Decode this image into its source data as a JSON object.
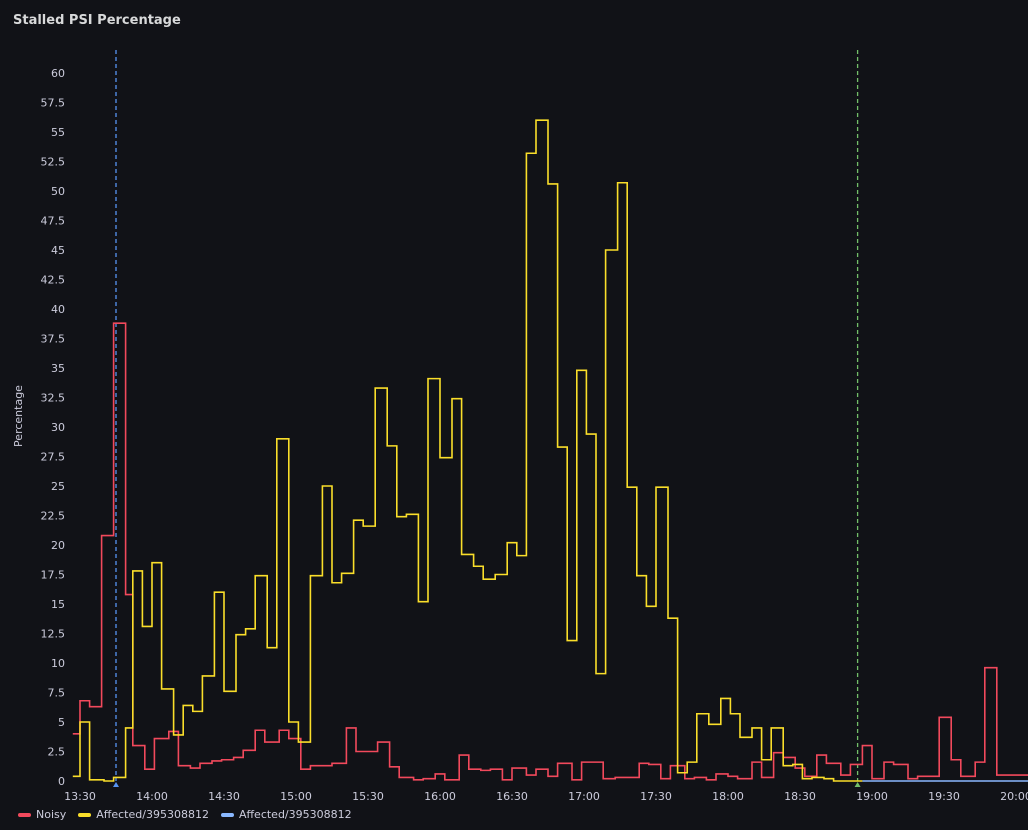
{
  "panel": {
    "title": "Stalled PSI Percentage"
  },
  "chart_data": {
    "type": "line",
    "step": true,
    "ylabel": "Percentage",
    "ylim": [
      0,
      62
    ],
    "yticks": [
      0,
      2.5,
      5,
      7.5,
      10,
      12.5,
      15,
      17.5,
      20,
      22.5,
      25,
      27.5,
      30,
      32.5,
      35,
      37.5,
      40,
      42.5,
      45,
      47.5,
      50,
      52.5,
      55,
      57.5,
      60
    ],
    "ytick_labels": [
      "0",
      "2.5",
      "5",
      "7.5",
      "10",
      "12.5",
      "15",
      "17.5",
      "20",
      "22.5",
      "25",
      "27.5",
      "30",
      "32.5",
      "35",
      "37.5",
      "40",
      "42.5",
      "45",
      "47.5",
      "50",
      "52.5",
      "55",
      "57.5",
      "60"
    ],
    "xlim_minutes": [
      810,
      1205
    ],
    "xticks_minutes": [
      810,
      840,
      870,
      900,
      930,
      960,
      990,
      1020,
      1050,
      1080,
      1110,
      1140,
      1170,
      1200
    ],
    "xtick_labels": [
      "13:30",
      "14:00",
      "14:30",
      "15:00",
      "15:30",
      "16:00",
      "16:30",
      "17:00",
      "17:30",
      "18:00",
      "18:30",
      "19:00",
      "19:30",
      "20:00"
    ],
    "grid": false,
    "legend_position": "bottom-left",
    "annotations": [
      {
        "minutes": 825,
        "color": "#5794f2"
      },
      {
        "minutes": 1134,
        "color": "#73bf69"
      }
    ],
    "series": [
      {
        "name": "Noisy",
        "color": "#f2495c",
        "x": [
          807,
          810,
          814,
          819,
          824,
          829,
          832,
          837,
          841,
          847,
          851,
          856,
          860,
          865,
          869,
          874,
          878,
          883,
          887,
          893,
          897,
          902,
          906,
          911,
          915,
          921,
          925,
          930,
          934,
          939,
          943,
          949,
          953,
          958,
          962,
          968,
          972,
          977,
          981,
          986,
          990,
          996,
          1000,
          1005,
          1009,
          1015,
          1019,
          1024,
          1028,
          1033,
          1037,
          1043,
          1047,
          1052,
          1056,
          1062,
          1066,
          1071,
          1075,
          1080,
          1084,
          1090,
          1094,
          1099,
          1103,
          1108,
          1112,
          1117,
          1121,
          1127,
          1131,
          1136,
          1140,
          1145,
          1149,
          1155,
          1159,
          1164,
          1168,
          1173,
          1177,
          1183,
          1187,
          1192,
          1196,
          1201,
          1205
        ],
        "y": [
          4,
          6.8,
          6.3,
          20.8,
          38.8,
          15.8,
          3,
          1,
          3.6,
          4.2,
          1.3,
          1.1,
          1.5,
          1.7,
          1.8,
          2,
          2.6,
          4.3,
          3.3,
          4.3,
          3.6,
          1,
          1.3,
          1.3,
          1.5,
          4.5,
          2.5,
          2.5,
          3.3,
          1.2,
          0.3,
          0.1,
          0.2,
          0.6,
          0.1,
          2.2,
          1,
          0.9,
          1,
          0.1,
          1.1,
          0.5,
          1,
          0.4,
          1.5,
          0.1,
          1.6,
          1.6,
          0.2,
          0.3,
          0.3,
          1.5,
          1.4,
          0.2,
          1.3,
          0.2,
          0.3,
          0.1,
          0.6,
          0.4,
          0.2,
          1.6,
          0.3,
          2.4,
          2,
          1.1,
          0.4,
          2.2,
          1.5,
          0.5,
          1.4,
          3,
          0.2,
          1.6,
          1.4,
          0.2,
          0.4,
          0.4,
          5.4,
          1.8,
          0.4,
          1.6,
          9.6,
          0.5,
          0.5,
          0.5,
          0.5
        ]
      },
      {
        "name": "Affected/395308812",
        "color": "#fade2a",
        "x": [
          807,
          810,
          814,
          820,
          824,
          829,
          832,
          836,
          840,
          844,
          849,
          853,
          857,
          861,
          866,
          870,
          875,
          879,
          883,
          888,
          892,
          897,
          901,
          906,
          911,
          915,
          919,
          924,
          928,
          933,
          938,
          942,
          946,
          951,
          955,
          960,
          965,
          969,
          974,
          978,
          983,
          988,
          992,
          996,
          1000,
          1005,
          1009,
          1013,
          1017,
          1021,
          1025,
          1029,
          1034,
          1038,
          1042,
          1046,
          1050,
          1055,
          1059,
          1063,
          1067,
          1072,
          1077,
          1081,
          1085,
          1090,
          1094,
          1098,
          1103,
          1107,
          1111,
          1115,
          1120,
          1124,
          1128,
          1132,
          1136
        ],
        "y": [
          0.4,
          5,
          0.1,
          0,
          0.3,
          4.5,
          17.8,
          13.1,
          18.5,
          7.8,
          3.9,
          6.4,
          5.9,
          8.9,
          16,
          7.6,
          12.4,
          12.9,
          17.4,
          11.3,
          29,
          5,
          3.3,
          17.4,
          25,
          16.8,
          17.6,
          22.1,
          21.6,
          33.3,
          28.4,
          22.4,
          22.6,
          15.2,
          34.1,
          27.4,
          32.4,
          19.2,
          18.2,
          17.1,
          17.5,
          20.2,
          19.1,
          53.2,
          56,
          50.6,
          28.3,
          11.9,
          34.8,
          29.4,
          9.1,
          45,
          50.7,
          24.9,
          17.4,
          14.8,
          24.9,
          13.8,
          0.7,
          1.6,
          5.7,
          4.8,
          7,
          5.7,
          3.7,
          4.5,
          1.8,
          4.5,
          1.3,
          1.4,
          0.2,
          0.3,
          0.2,
          0,
          0,
          0,
          0
        ]
      },
      {
        "name": "Affected/395308812",
        "color": "#8ab8ff",
        "x": [
          1136,
          1205
        ],
        "y": [
          0,
          0
        ]
      }
    ]
  }
}
